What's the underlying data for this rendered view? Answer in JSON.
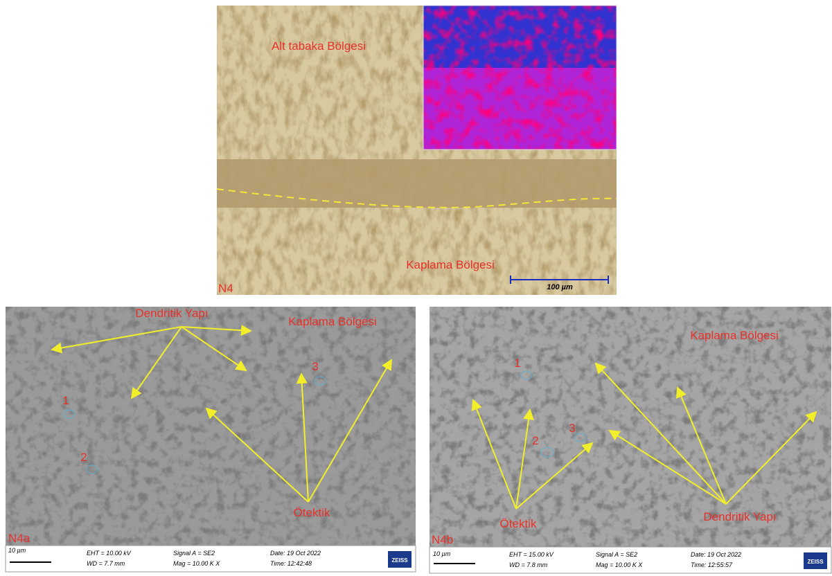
{
  "top": {
    "region_upper": "Alt tabaka Bölgesi",
    "region_lower": "Kaplama Bölgesi",
    "sample": "N4",
    "scale": "100 µm"
  },
  "left": {
    "structure": "Dendritik Yapı",
    "region": "Kaplama Bölgesi",
    "points": [
      "1",
      "2",
      "3"
    ],
    "eutectic": "Ötektik",
    "sample": "N4a",
    "scale": "10 µm",
    "info": [
      "EHT = 10.00 kV",
      "WD = 7.7 mm",
      "Signal A = SE2",
      "Mag = 10.00 K X",
      "Date: 19 Oct 2022",
      "Time: 12:42:48"
    ],
    "brand": "ZEISS"
  },
  "right": {
    "region": "Kaplama Bölgesi",
    "points": [
      "1",
      "2",
      "3"
    ],
    "eutectic": "Ötektik",
    "structure": "Dendritik Yapı",
    "sample": "N4b",
    "scale": "10 µm",
    "info": [
      "EHT = 15.00 kV",
      "WD = 7.8 mm",
      "Signal A = SE2",
      "Mag = 10.00 K X",
      "Date: 19 Oct 2022",
      "Time: 12:55:57"
    ],
    "brand": "ZEISS"
  }
}
